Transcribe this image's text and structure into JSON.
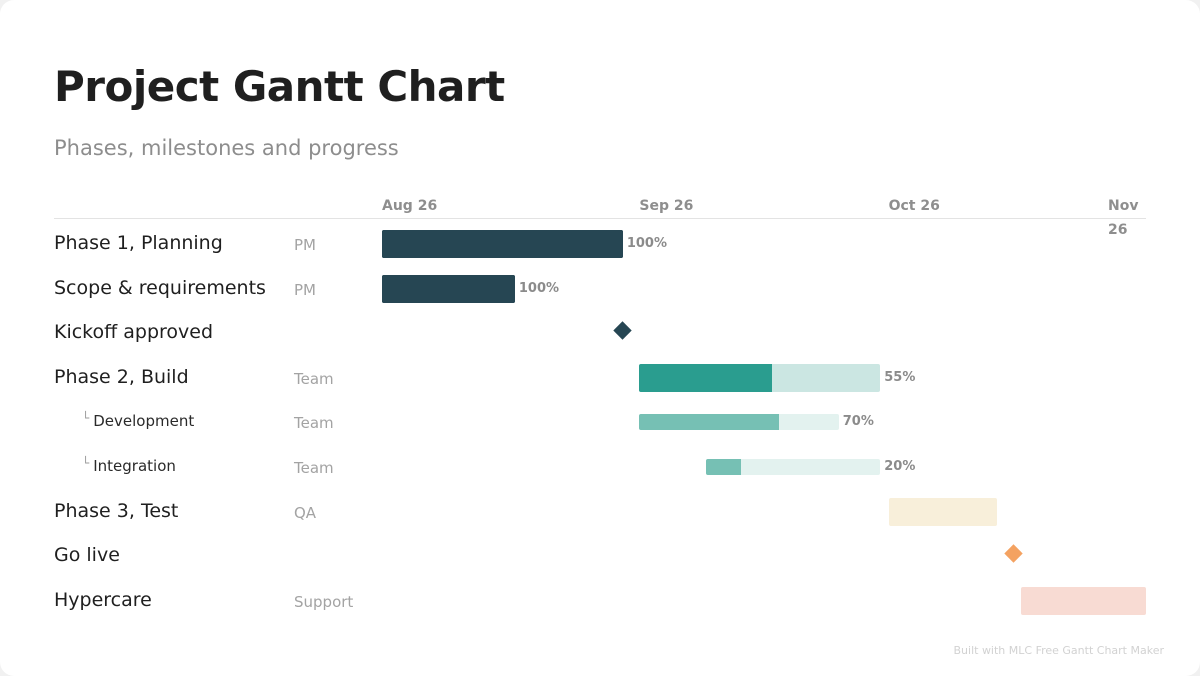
{
  "title": "Project Gantt Chart",
  "subtitle": "Phases, milestones and progress",
  "footer": "Built with MLC Free Gantt Chart Maker",
  "chart_data": {
    "type": "gantt",
    "title": "Project Gantt Chart",
    "subtitle": "Phases, milestones and progress",
    "x_axis": {
      "type": "date",
      "range": [
        "2026-08-26",
        "2026-11-26"
      ],
      "ticks": [
        {
          "label": "Aug 26",
          "date": "2026-08-26"
        },
        {
          "label": "Sep 26",
          "date": "2026-09-26"
        },
        {
          "label": "Oct 26",
          "date": "2026-10-26"
        },
        {
          "label": "Nov 26",
          "date": "2026-11-26"
        }
      ]
    },
    "tasks": [
      {
        "name": "Phase 1, Planning",
        "owner": "PM",
        "kind": "phase",
        "start": "2026-08-26",
        "end": "2026-09-24",
        "progress": 100,
        "progress_label": "100%",
        "color": "#264653",
        "track_color": "#264653"
      },
      {
        "name": "Scope & requirements",
        "owner": "PM",
        "kind": "task",
        "start": "2026-08-26",
        "end": "2026-09-11",
        "progress": 100,
        "progress_label": "100%",
        "color": "#264653",
        "track_color": "#264653"
      },
      {
        "name": "Kickoff approved",
        "owner": "",
        "kind": "milestone",
        "date": "2026-09-24",
        "color": "#264653"
      },
      {
        "name": "Phase 2, Build",
        "owner": "Team",
        "kind": "phase",
        "start": "2026-09-26",
        "end": "2026-10-25",
        "progress": 55,
        "progress_label": "55%",
        "color": "#2a9d8f",
        "track_color": "#cbe6e2"
      },
      {
        "name": "Development",
        "owner": "Team",
        "kind": "subtask",
        "start": "2026-09-26",
        "end": "2026-10-20",
        "progress": 70,
        "progress_label": "70%",
        "color": "#76c0b4",
        "track_color": "#e3f2ef"
      },
      {
        "name": "Integration",
        "owner": "Team",
        "kind": "subtask",
        "start": "2026-10-04",
        "end": "2026-10-25",
        "progress": 20,
        "progress_label": "20%",
        "color": "#76c0b4",
        "track_color": "#e3f2ef"
      },
      {
        "name": "Phase 3, Test",
        "owner": "QA",
        "kind": "phase",
        "start": "2026-10-26",
        "end": "2026-11-08",
        "progress": null,
        "progress_label": "",
        "color": "#f8efda",
        "track_color": "#f8efda"
      },
      {
        "name": "Go live",
        "owner": "",
        "kind": "milestone",
        "date": "2026-11-10",
        "color": "#f4a261"
      },
      {
        "name": "Hypercare",
        "owner": "Support",
        "kind": "phase",
        "start": "2026-11-11",
        "end": "2026-11-26",
        "progress": null,
        "progress_label": "",
        "color": "#f8dbd3",
        "track_color": "#f8dbd3"
      }
    ]
  }
}
